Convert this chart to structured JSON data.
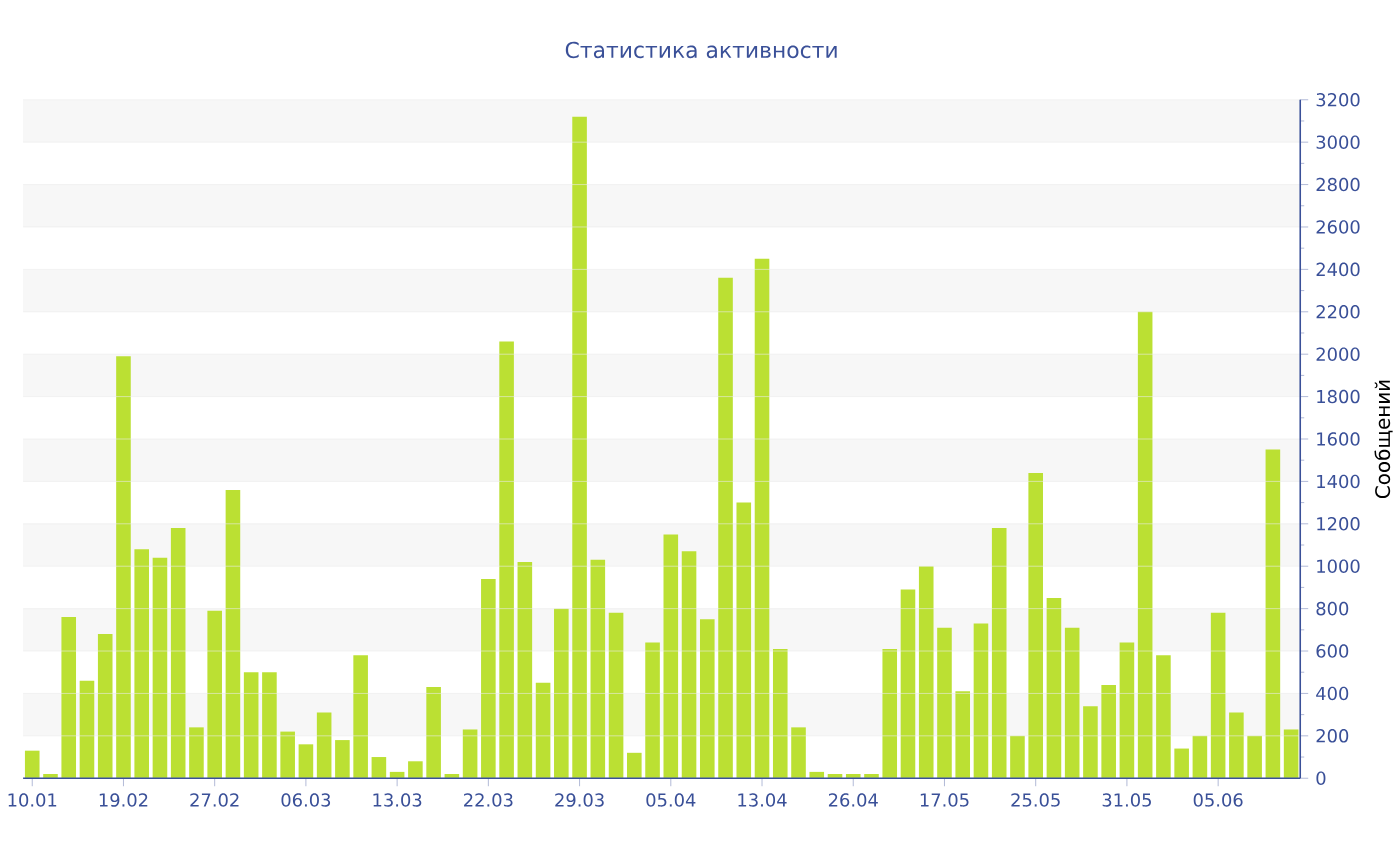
{
  "chart_data": {
    "type": "bar",
    "title": "Статистика активности",
    "ylabel": "Сообщений",
    "categories": [
      "10.01",
      null,
      null,
      null,
      null,
      "19.02",
      null,
      null,
      null,
      null,
      "27.02",
      null,
      null,
      null,
      null,
      "06.03",
      null,
      null,
      null,
      null,
      "13.03",
      null,
      null,
      null,
      null,
      "22.03",
      null,
      null,
      null,
      null,
      "29.03",
      null,
      null,
      null,
      null,
      "05.04",
      null,
      null,
      null,
      null,
      "13.04",
      null,
      null,
      null,
      null,
      "26.04",
      null,
      null,
      null,
      null,
      "17.05",
      null,
      null,
      null,
      null,
      "25.05",
      null,
      null,
      null,
      null,
      "31.05",
      null,
      null,
      null,
      null,
      "05.06",
      null,
      null,
      null,
      null
    ],
    "values": [
      130,
      20,
      760,
      460,
      680,
      1990,
      1080,
      1040,
      1180,
      240,
      790,
      1360,
      500,
      500,
      220,
      160,
      310,
      180,
      580,
      100,
      30,
      80,
      430,
      20,
      230,
      940,
      2060,
      1020,
      450,
      800,
      3120,
      1030,
      780,
      120,
      640,
      1150,
      1070,
      750,
      2360,
      1300,
      2450,
      610,
      240,
      30,
      20,
      20,
      20,
      610,
      890,
      1000,
      710,
      410,
      730,
      1180,
      200,
      1440,
      850,
      710,
      340,
      440,
      640,
      2200,
      580,
      140,
      200,
      780,
      310,
      200,
      1550,
      230
    ],
    "color": "#bbe033",
    "ylim": [
      0,
      3200
    ],
    "yticks": [
      0,
      200,
      400,
      600,
      800,
      1000,
      1200,
      1400,
      1600,
      1800,
      2000,
      2200,
      2400,
      2600,
      2800,
      3000,
      3200
    ],
    "grid": "y"
  }
}
